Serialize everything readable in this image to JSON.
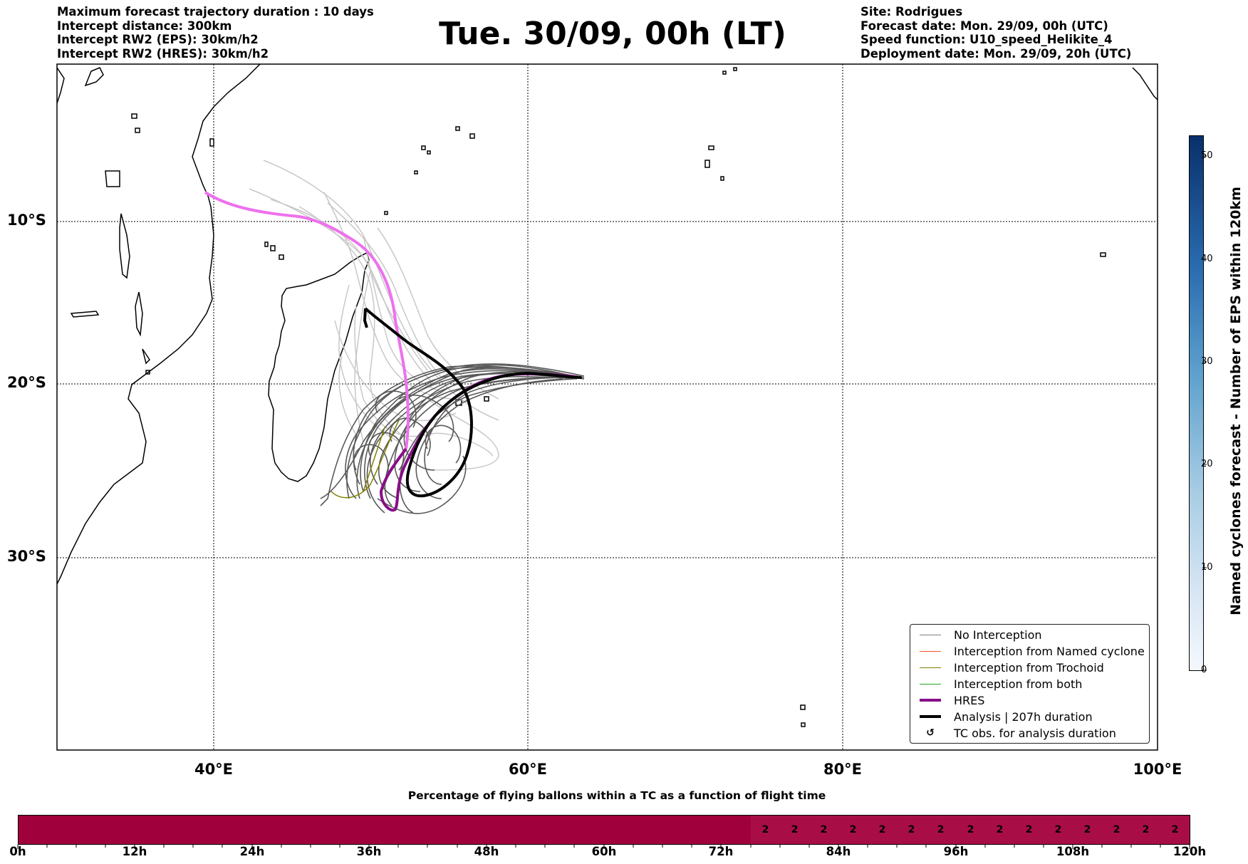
{
  "header": {
    "left_lines": [
      "Maximum forecast trajectory duration : 10 days",
      "Intercept distance: 300km",
      "Intercept RW2 (EPS):  30km/h2",
      "Intercept RW2 (HRES): 30km/h2"
    ],
    "title": "Tue. 30/09, 00h (LT)",
    "right_lines": [
      "Site: Rodrigues",
      "Forecast date: Mon. 29/09, 00h (UTC)",
      "Speed function: U10_speed_Helikite_4",
      "Deployment date: Mon. 29/09, 20h (UTC)"
    ]
  },
  "map": {
    "lat_labels": [
      "10°S",
      "20°S",
      "30°S"
    ],
    "lon_labels": [
      "40°E",
      "60°E",
      "80°E",
      "100°E"
    ],
    "colors": {
      "hres": "#880e88",
      "hres_early": "#ee70ee",
      "analysis": "#000000",
      "ens_dark": "#595959",
      "ens_light": "#c8c8c8",
      "trochoid": "#808000",
      "named": "#ff5522",
      "both": "#22aa22"
    }
  },
  "legend": {
    "items": [
      {
        "label": "No Interception",
        "color": "#808080",
        "width": 1.5,
        "kind": "line"
      },
      {
        "label": "Interception from Named cyclone",
        "color": "#ff5522",
        "width": 1.5,
        "kind": "line"
      },
      {
        "label": "Interception from Trochoid",
        "color": "#808000",
        "width": 1.5,
        "kind": "line"
      },
      {
        "label": "Interception from both",
        "color": "#22aa22",
        "width": 1.5,
        "kind": "line"
      },
      {
        "label": "HRES",
        "color": "#880e88",
        "width": 4,
        "kind": "line"
      },
      {
        "label": "Analysis | 207h duration",
        "color": "#000000",
        "width": 4,
        "kind": "line"
      },
      {
        "label": "TC obs. for analysis duration",
        "color": "#000000",
        "kind": "marker",
        "glyph": "↺"
      }
    ]
  },
  "colorbar": {
    "label": "Named cyclones forecast - Number of EPS within 120km",
    "ticks": [
      "0",
      "10",
      "20",
      "30",
      "40",
      "50"
    ],
    "vmin": 0,
    "vmax": 52,
    "color_low": "#f4f8fd",
    "color_high": "#08306b"
  },
  "percentage_bar": {
    "title": "Percentage of flying ballons within a TC as a function of flight time",
    "ticks": [
      "0h",
      "12h",
      "24h",
      "36h",
      "48h",
      "60h",
      "72h",
      "84h",
      "96h",
      "108h",
      "120h"
    ],
    "zero_color": "#a0003c",
    "value_color": "#a80e45",
    "values_from_75h_every_3h": [
      "2",
      "2",
      "2",
      "2",
      "2",
      "2",
      "2",
      "2",
      "2",
      "2",
      "2",
      "2",
      "2",
      "2",
      "2"
    ]
  }
}
